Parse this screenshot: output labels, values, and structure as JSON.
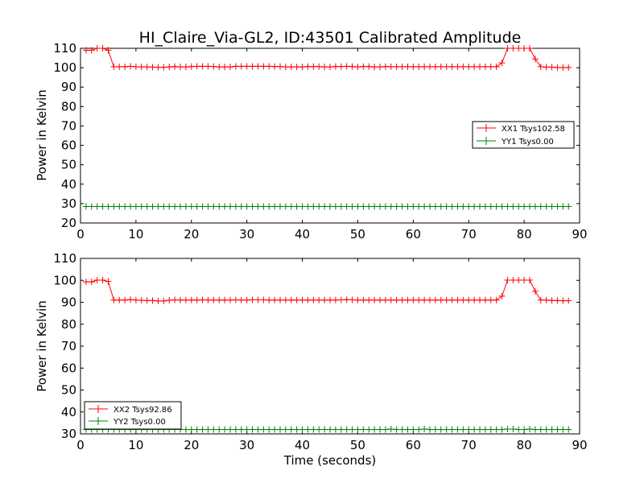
{
  "title": "HI_Claire_Via-GL2, ID:43501 Calibrated Amplitude",
  "chart_data": [
    {
      "type": "line",
      "ylabel": "Power in Kelvin",
      "xlabel": "",
      "xlim": [
        0,
        90
      ],
      "ylim": [
        20,
        110
      ],
      "xticks": [
        0,
        10,
        20,
        30,
        40,
        50,
        60,
        70,
        80,
        90
      ],
      "yticks": [
        20,
        30,
        40,
        50,
        60,
        70,
        80,
        90,
        100,
        110
      ],
      "legend_position": "right",
      "x": [
        1,
        2,
        3,
        4,
        5,
        6,
        7,
        8,
        9,
        10,
        11,
        12,
        13,
        14,
        15,
        16,
        17,
        18,
        19,
        20,
        21,
        22,
        23,
        24,
        25,
        26,
        27,
        28,
        29,
        30,
        31,
        32,
        33,
        34,
        35,
        36,
        37,
        38,
        39,
        40,
        41,
        42,
        43,
        44,
        45,
        46,
        47,
        48,
        49,
        50,
        51,
        52,
        53,
        54,
        55,
        56,
        57,
        58,
        59,
        60,
        61,
        62,
        63,
        64,
        65,
        66,
        67,
        68,
        69,
        70,
        71,
        72,
        73,
        74,
        75,
        76,
        77,
        78,
        79,
        80,
        81,
        82,
        83,
        84,
        85,
        86,
        87,
        88
      ],
      "series": [
        {
          "name": "XX1 Tsys102.58",
          "color": "#ff0000",
          "values": [
            109,
            109,
            110,
            110,
            109,
            100.5,
            100.5,
            100.5,
            100.7,
            100.5,
            100.4,
            100.4,
            100.3,
            100.2,
            100.2,
            100.4,
            100.6,
            100.4,
            100.4,
            100.6,
            100.7,
            100.7,
            100.7,
            100.6,
            100.4,
            100.4,
            100.4,
            100.7,
            100.7,
            100.7,
            100.7,
            100.7,
            100.7,
            100.7,
            100.6,
            100.6,
            100.4,
            100.4,
            100.4,
            100.4,
            100.6,
            100.6,
            100.6,
            100.4,
            100.4,
            100.6,
            100.6,
            100.7,
            100.6,
            100.4,
            100.6,
            100.6,
            100.4,
            100.4,
            100.6,
            100.5,
            100.5,
            100.5,
            100.5,
            100.5,
            100.5,
            100.5,
            100.5,
            100.5,
            100.5,
            100.5,
            100.5,
            100.5,
            100.5,
            100.5,
            100.5,
            100.5,
            100.5,
            100.5,
            100.5,
            102.5,
            110,
            110,
            110,
            110,
            110,
            104.5,
            100.5,
            100.3,
            100.3,
            100.1,
            100.1,
            100.1
          ]
        },
        {
          "name": "YY1 Tsys0.00",
          "color": "#008000",
          "values": [
            28.5,
            28.5,
            28.5,
            28.5,
            28.5,
            28.5,
            28.5,
            28.5,
            28.5,
            28.5,
            28.5,
            28.5,
            28.5,
            28.5,
            28.5,
            28.5,
            28.5,
            28.5,
            28.5,
            28.5,
            28.5,
            28.5,
            28.5,
            28.5,
            28.5,
            28.5,
            28.5,
            28.5,
            28.5,
            28.5,
            28.5,
            28.5,
            28.5,
            28.5,
            28.5,
            28.5,
            28.5,
            28.5,
            28.5,
            28.5,
            28.5,
            28.5,
            28.5,
            28.5,
            28.5,
            28.5,
            28.5,
            28.5,
            28.5,
            28.5,
            28.5,
            28.5,
            28.5,
            28.5,
            28.5,
            28.5,
            28.5,
            28.5,
            28.5,
            28.5,
            28.5,
            28.5,
            28.5,
            28.5,
            28.5,
            28.5,
            28.5,
            28.5,
            28.5,
            28.5,
            28.5,
            28.5,
            28.5,
            28.5,
            28.5,
            28.5,
            28.5,
            28.5,
            28.5,
            28.5,
            28.5,
            28.5,
            28.5,
            28.5,
            28.5,
            28.5,
            28.5,
            28.5
          ]
        }
      ]
    },
    {
      "type": "line",
      "ylabel": "Power in Kelvin",
      "xlabel": "Time (seconds)",
      "xlim": [
        0,
        90
      ],
      "ylim": [
        30,
        110
      ],
      "xticks": [
        0,
        10,
        20,
        30,
        40,
        50,
        60,
        70,
        80,
        90
      ],
      "yticks": [
        30,
        40,
        50,
        60,
        70,
        80,
        90,
        100,
        110
      ],
      "legend_position": "lower left",
      "x": [
        1,
        2,
        3,
        4,
        5,
        6,
        7,
        8,
        9,
        10,
        11,
        12,
        13,
        14,
        15,
        16,
        17,
        18,
        19,
        20,
        21,
        22,
        23,
        24,
        25,
        26,
        27,
        28,
        29,
        30,
        31,
        32,
        33,
        34,
        35,
        36,
        37,
        38,
        39,
        40,
        41,
        42,
        43,
        44,
        45,
        46,
        47,
        48,
        49,
        50,
        51,
        52,
        53,
        54,
        55,
        56,
        57,
        58,
        59,
        60,
        61,
        62,
        63,
        64,
        65,
        66,
        67,
        68,
        69,
        70,
        71,
        72,
        73,
        74,
        75,
        76,
        77,
        78,
        79,
        80,
        81,
        82,
        83,
        84,
        85,
        86,
        87,
        88
      ],
      "series": [
        {
          "name": "XX2 Tsys92.86",
          "color": "#ff0000",
          "values": [
            99.3,
            99.3,
            100.1,
            100.1,
            99.5,
            91,
            91,
            91,
            91.2,
            91,
            90.9,
            90.8,
            90.8,
            90.6,
            90.6,
            90.9,
            91.1,
            91,
            91,
            91,
            91,
            91.1,
            91,
            91,
            91,
            91,
            91,
            91.1,
            91,
            91,
            91.1,
            91.1,
            91.1,
            91,
            91,
            91,
            91,
            91,
            91,
            91,
            91,
            91,
            91,
            91,
            91,
            91,
            91.1,
            91.2,
            91.1,
            91,
            91,
            91,
            91,
            91,
            91,
            91,
            91,
            91,
            91,
            91,
            91,
            91,
            91,
            91,
            91,
            91,
            91,
            91,
            91,
            91,
            91,
            91,
            91,
            91,
            91,
            92.8,
            100.1,
            100.1,
            100.1,
            100.1,
            100.1,
            95,
            91,
            91,
            90.8,
            90.8,
            90.7,
            90.7
          ]
        },
        {
          "name": "YY2 Tsys0.00",
          "color": "#008000",
          "values": [
            32,
            32,
            32,
            32,
            32,
            32,
            32,
            32,
            32,
            32,
            32,
            32,
            32,
            32,
            32,
            32,
            32,
            32,
            32,
            32,
            32,
            32,
            32,
            32,
            32,
            32,
            32,
            32,
            32,
            32,
            32,
            32,
            32,
            32,
            32,
            32,
            32,
            32,
            32,
            32,
            32,
            32,
            32,
            32,
            32,
            32,
            32,
            32,
            32,
            32,
            32,
            32,
            32,
            32,
            32,
            32.2,
            32,
            32,
            32,
            32,
            32,
            32.2,
            32,
            32,
            32,
            32,
            32,
            32,
            32,
            32,
            32,
            32,
            32,
            32,
            32,
            32,
            32.2,
            32.2,
            32,
            32,
            32.2,
            32,
            32,
            32,
            32,
            32,
            32,
            32
          ]
        }
      ]
    }
  ]
}
